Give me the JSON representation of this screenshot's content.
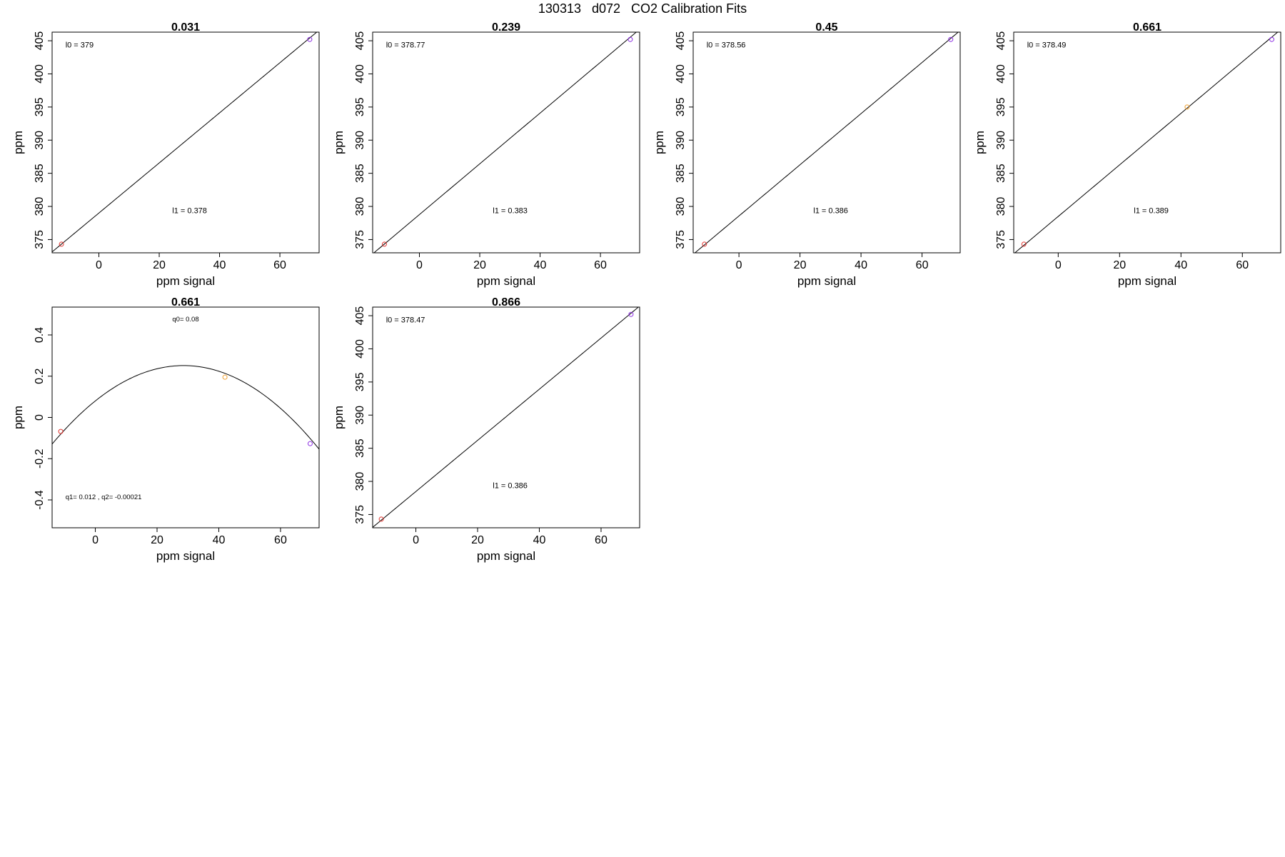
{
  "page": {
    "title": "130313   d072   CO2 Calibration Fits"
  },
  "colors": {
    "axis": "#000000",
    "fit_line": "#000000",
    "point_low": "#e0302a",
    "point_mid": "#f0a030",
    "point_high": "#8a2be2"
  },
  "chart_data": [
    {
      "type": "scatter",
      "title": "0.031",
      "xlabel": "ppm signal",
      "ylabel": "ppm",
      "xlim": [
        -15.5,
        73
      ],
      "ylim": [
        373,
        406.3
      ],
      "xticks": [
        0,
        20,
        40,
        60
      ],
      "yticks": [
        375,
        380,
        385,
        390,
        395,
        400,
        405
      ],
      "points": [
        {
          "x": -12.4,
          "y": 374.3,
          "color": "point_low"
        },
        {
          "x": 69.9,
          "y": 405.2,
          "color": "point_high"
        }
      ],
      "fit": {
        "kind": "linear",
        "intercept": 379,
        "slope": 0.378
      },
      "annotations": [
        "l0 =  379",
        "l1 =  0.378"
      ]
    },
    {
      "type": "scatter",
      "title": "0.239",
      "xlabel": "ppm signal",
      "ylabel": "ppm",
      "xlim": [
        -15.5,
        73
      ],
      "ylim": [
        373,
        406.3
      ],
      "xticks": [
        0,
        20,
        40,
        60
      ],
      "yticks": [
        375,
        380,
        385,
        390,
        395,
        400,
        405
      ],
      "points": [
        {
          "x": -11.6,
          "y": 374.3,
          "color": "point_low"
        },
        {
          "x": 69.9,
          "y": 405.2,
          "color": "point_high"
        }
      ],
      "fit": {
        "kind": "linear",
        "intercept": 378.77,
        "slope": 0.383
      },
      "annotations": [
        "l0 =  378.77",
        "l1 =  0.383"
      ]
    },
    {
      "type": "scatter",
      "title": "0.45",
      "xlabel": "ppm signal",
      "ylabel": "ppm",
      "xlim": [
        -15,
        72.5
      ],
      "ylim": [
        373,
        406.3
      ],
      "xticks": [
        0,
        20,
        40,
        60
      ],
      "yticks": [
        375,
        380,
        385,
        390,
        395,
        400,
        405
      ],
      "points": [
        {
          "x": -11.3,
          "y": 374.3,
          "color": "point_low"
        },
        {
          "x": 69.4,
          "y": 405.2,
          "color": "point_high"
        }
      ],
      "fit": {
        "kind": "linear",
        "intercept": 378.56,
        "slope": 0.386
      },
      "annotations": [
        "l0 =  378.56",
        "l1 =  0.386"
      ]
    },
    {
      "type": "scatter",
      "title": "0.661",
      "xlabel": "ppm signal",
      "ylabel": "ppm",
      "xlim": [
        -14.5,
        72.5
      ],
      "ylim": [
        373,
        406.3
      ],
      "xticks": [
        0,
        20,
        40,
        60
      ],
      "yticks": [
        375,
        380,
        385,
        390,
        395,
        400,
        405
      ],
      "points": [
        {
          "x": -11.2,
          "y": 374.3,
          "color": "point_low"
        },
        {
          "x": 42.0,
          "y": 395.0,
          "color": "point_mid"
        },
        {
          "x": 69.6,
          "y": 405.2,
          "color": "point_high"
        }
      ],
      "fit": {
        "kind": "linear",
        "intercept": 378.49,
        "slope": 0.389
      },
      "annotations": [
        "l0 =  378.49",
        "l1 =  0.389"
      ]
    },
    {
      "type": "scatter",
      "title": "0.661",
      "xlabel": "ppm signal",
      "ylabel": "ppm",
      "xlim": [
        -14,
        72.5
      ],
      "ylim": [
        -0.535,
        0.535
      ],
      "xticks": [
        0,
        20,
        40,
        60
      ],
      "yticks": [
        -0.4,
        -0.2,
        0.0,
        0.2,
        0.4
      ],
      "points": [
        {
          "x": -11.2,
          "y": -0.068,
          "color": "point_low"
        },
        {
          "x": 42.0,
          "y": 0.195,
          "color": "point_mid"
        },
        {
          "x": 69.6,
          "y": -0.127,
          "color": "point_high"
        }
      ],
      "fit": {
        "kind": "quadratic",
        "q0": 0.08,
        "q1": 0.012,
        "q2": -0.00021
      },
      "annotations": [
        "q0= 0.08",
        "q1= 0.012 , q2= -0.00021"
      ]
    },
    {
      "type": "scatter",
      "title": "0.866",
      "xlabel": "ppm signal",
      "ylabel": "ppm",
      "xlim": [
        -14,
        72.5
      ],
      "ylim": [
        373,
        406.3
      ],
      "xticks": [
        0,
        20,
        40,
        60
      ],
      "yticks": [
        375,
        380,
        385,
        390,
        395,
        400,
        405
      ],
      "points": [
        {
          "x": -11.2,
          "y": 374.3,
          "color": "point_low"
        },
        {
          "x": 69.7,
          "y": 405.2,
          "color": "point_high"
        }
      ],
      "fit": {
        "kind": "linear",
        "intercept": 378.47,
        "slope": 0.386
      },
      "annotations": [
        "l0 =  378.47",
        "l1 =  0.386"
      ]
    }
  ]
}
